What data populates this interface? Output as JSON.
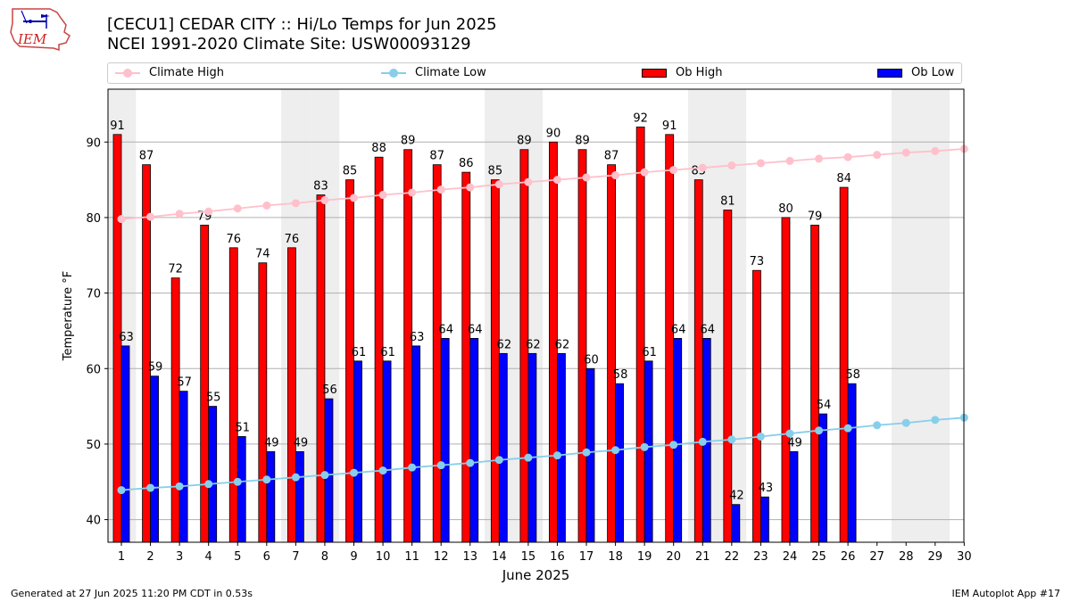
{
  "header": {
    "title_line1": "[CECU1] CEDAR CITY :: Hi/Lo Temps for Jun 2025",
    "title_line2": "NCEI 1991-2020 Climate Site: USW00093129",
    "logo_text": "IEM"
  },
  "footer": {
    "generated": "Generated at 27 Jun 2025 11:20 PM CDT in 0.53s",
    "app": "IEM Autoplot App #17"
  },
  "colors": {
    "ob_high": "#ff0000",
    "ob_low": "#0000ff",
    "climate_high": "#ffc0cb",
    "climate_low": "#87ceeb",
    "weekend_band": "#eeeeee",
    "grid": "#b0b0b0"
  },
  "chart_data": {
    "type": "bar",
    "title": "[CECU1] CEDAR CITY :: Hi/Lo Temps for Jun 2025",
    "subtitle": "NCEI 1991-2020 Climate Site: USW00093129",
    "xlabel": "June 2025",
    "ylabel": "Temperature °F",
    "ylim": [
      37,
      97
    ],
    "yticks": [
      40,
      50,
      60,
      70,
      80,
      90
    ],
    "grid": true,
    "legend_position": "top",
    "categories": [
      "1",
      "2",
      "3",
      "4",
      "5",
      "6",
      "7",
      "8",
      "9",
      "10",
      "11",
      "12",
      "13",
      "14",
      "15",
      "16",
      "17",
      "18",
      "19",
      "20",
      "21",
      "22",
      "23",
      "24",
      "25",
      "26",
      "27",
      "28",
      "29",
      "30"
    ],
    "weekend_days": [
      1,
      7,
      8,
      14,
      15,
      21,
      22,
      28,
      29
    ],
    "series": [
      {
        "name": "Ob High",
        "kind": "bar",
        "color": "#ff0000",
        "values": [
          91,
          87,
          72,
          79,
          76,
          74,
          76,
          83,
          85,
          88,
          89,
          87,
          86,
          85,
          89,
          90,
          89,
          87,
          92,
          91,
          85,
          81,
          73,
          80,
          79,
          84,
          null,
          null,
          null,
          null
        ]
      },
      {
        "name": "Ob Low",
        "kind": "bar",
        "color": "#0000ff",
        "values": [
          63,
          59,
          57,
          55,
          51,
          49,
          49,
          56,
          61,
          61,
          63,
          64,
          64,
          62,
          62,
          62,
          60,
          58,
          61,
          64,
          64,
          42,
          43,
          49,
          54,
          58,
          null,
          null,
          null,
          null
        ]
      },
      {
        "name": "Climate High",
        "kind": "line",
        "color": "#ffc0cb",
        "values": [
          79.8,
          80.1,
          80.5,
          80.8,
          81.2,
          81.6,
          81.9,
          82.3,
          82.6,
          83.0,
          83.3,
          83.7,
          84.0,
          84.4,
          84.7,
          85.0,
          85.3,
          85.6,
          86.0,
          86.3,
          86.6,
          86.9,
          87.2,
          87.5,
          87.8,
          88.0,
          88.3,
          88.6,
          88.8,
          89.1
        ]
      },
      {
        "name": "Climate Low",
        "kind": "line",
        "color": "#87ceeb",
        "values": [
          43.9,
          44.2,
          44.4,
          44.7,
          45.0,
          45.3,
          45.6,
          45.9,
          46.2,
          46.5,
          46.9,
          47.2,
          47.5,
          47.9,
          48.2,
          48.5,
          48.9,
          49.2,
          49.6,
          49.9,
          50.3,
          50.6,
          51.0,
          51.4,
          51.8,
          52.1,
          52.5,
          52.8,
          53.2,
          53.5
        ]
      }
    ]
  }
}
